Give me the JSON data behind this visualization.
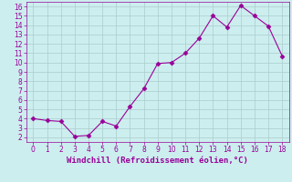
{
  "x": [
    0,
    1,
    2,
    3,
    4,
    5,
    6,
    7,
    8,
    9,
    10,
    11,
    12,
    13,
    14,
    15,
    16,
    17,
    18
  ],
  "y": [
    4.0,
    3.8,
    3.7,
    2.1,
    2.2,
    3.7,
    3.2,
    5.3,
    7.2,
    9.9,
    10.0,
    11.0,
    12.6,
    15.0,
    13.8,
    16.1,
    15.0,
    13.9,
    10.7
  ],
  "line_color": "#990099",
  "marker": "D",
  "marker_size": 2.5,
  "xlabel": "Windchill (Refroidissement éolien,°C)",
  "xlabel_fontsize": 6.5,
  "background_color": "#cceeee",
  "grid_color": "#aacccc",
  "tick_color": "#990099",
  "label_color": "#990099",
  "xlim": [
    -0.5,
    18.5
  ],
  "ylim": [
    1.5,
    16.5
  ],
  "yticks": [
    2,
    3,
    4,
    5,
    6,
    7,
    8,
    9,
    10,
    11,
    12,
    13,
    14,
    15,
    16
  ],
  "xticks": [
    0,
    1,
    2,
    3,
    4,
    5,
    6,
    7,
    8,
    9,
    10,
    11,
    12,
    13,
    14,
    15,
    16,
    17,
    18
  ]
}
